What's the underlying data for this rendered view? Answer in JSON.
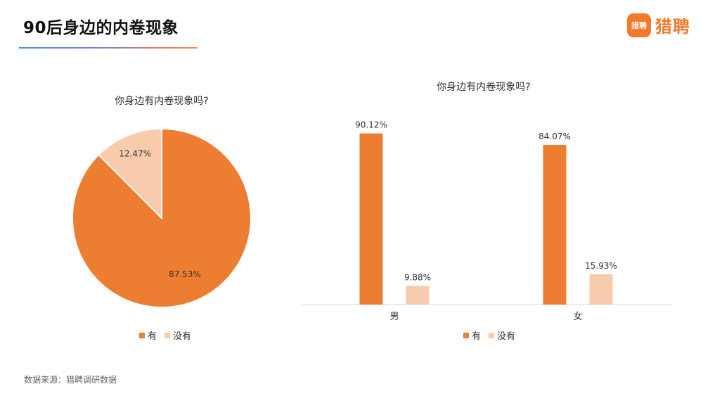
{
  "header": {
    "title": "90后身边的内卷现象",
    "logo_text": "猎聘",
    "logo_badge": "猎聘"
  },
  "footer": {
    "source_label": "数据来源：",
    "source_value": "猎聘调研数据"
  },
  "colors": {
    "yes": "#ed7d31",
    "no": "#f8cbad",
    "accent": "#f5782b"
  },
  "chart_data": [
    {
      "type": "pie",
      "title": "你身边有内卷现象吗?",
      "labels": [
        "有",
        "没有"
      ],
      "values": [
        87.53,
        12.47
      ],
      "value_labels": [
        "87.53%",
        "12.47%"
      ],
      "legend": {
        "position": "bottom",
        "entries": [
          "有",
          "没有"
        ]
      }
    },
    {
      "type": "bar",
      "title": "你身边有内卷现象吗?",
      "categories": [
        "男",
        "女"
      ],
      "series": [
        {
          "name": "有",
          "values": [
            90.12,
            84.07
          ],
          "value_labels": [
            "90.12%",
            "84.07%"
          ]
        },
        {
          "name": "没有",
          "values": [
            9.88,
            15.93
          ],
          "value_labels": [
            "9.88%",
            "15.93%"
          ]
        }
      ],
      "ylim": [
        0,
        100
      ],
      "grid": false,
      "legend": {
        "position": "bottom",
        "entries": [
          "有",
          "没有"
        ]
      }
    }
  ]
}
